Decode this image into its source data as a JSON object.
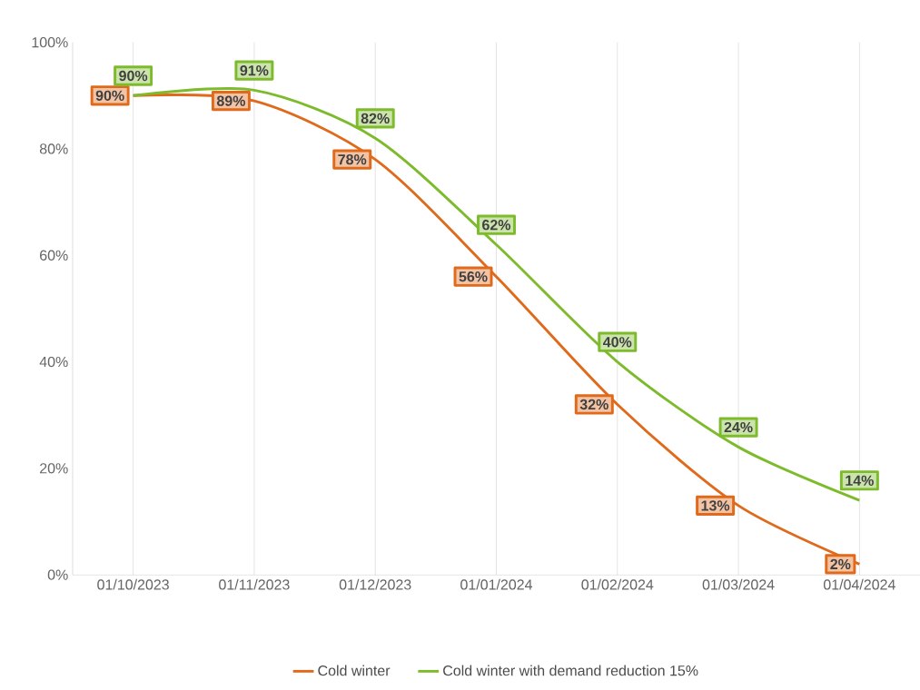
{
  "chart_data": {
    "type": "line",
    "categories": [
      "01/10/2023",
      "01/11/2023",
      "01/12/2023",
      "01/01/2024",
      "01/02/2024",
      "01/03/2024",
      "01/04/2024"
    ],
    "series": [
      {
        "name": "Cold winter",
        "color": "#e06a1b",
        "values": [
          90,
          89,
          78,
          56,
          32,
          13,
          2
        ],
        "value_labels": [
          "90%",
          "89%",
          "78%",
          "56%",
          "32%",
          "13%",
          "2%"
        ]
      },
      {
        "name": "Cold winter with demand reduction 15%",
        "color": "#7dbb2c",
        "values": [
          90,
          91,
          82,
          62,
          40,
          24,
          14
        ],
        "value_labels": [
          "90%",
          "91%",
          "82%",
          "62%",
          "40%",
          "24%",
          "14%"
        ]
      }
    ],
    "ylim": [
      0,
      100
    ],
    "yticks": [
      {
        "value": 0,
        "label": "0%"
      },
      {
        "value": 20,
        "label": "20%"
      },
      {
        "value": 40,
        "label": "40%"
      },
      {
        "value": 60,
        "label": "60%"
      },
      {
        "value": 80,
        "label": "80%"
      },
      {
        "value": 100,
        "label": "100%"
      }
    ],
    "grid": "x",
    "legend": "bottom",
    "marker": "none",
    "line_style": "solid"
  }
}
